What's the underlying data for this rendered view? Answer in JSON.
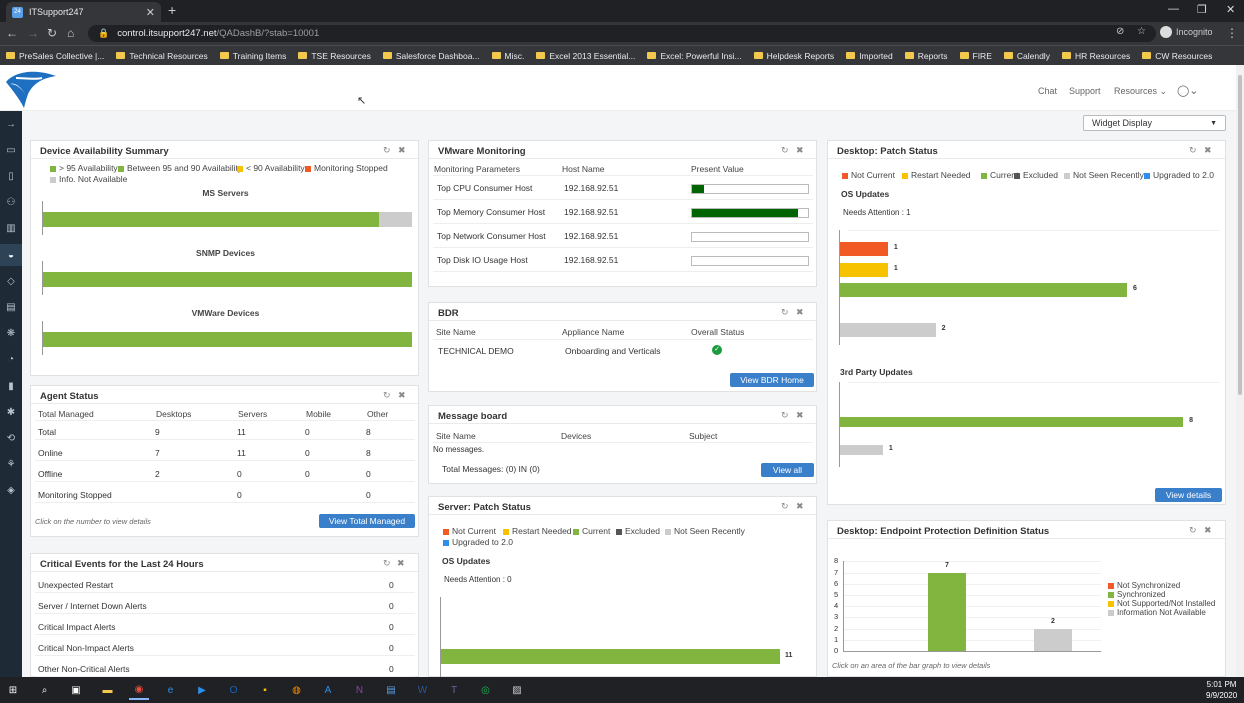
{
  "browser": {
    "tab_title": "ITSupport247",
    "url_host": "control.itsupport247.net",
    "url_path": "/QADashB/?stab=10001",
    "incognito": "Incognito",
    "bookmarks": [
      "PreSales Collective |...",
      "Technical Resources",
      "Training Items",
      "TSE Resources",
      "Salesforce Dashboa...",
      "Misc.",
      "Excel 2013 Essential...",
      "Excel: Powerful Insi...",
      "Helpdesk Reports",
      "Imported",
      "Reports",
      "FIRE",
      "Calendly",
      "HR Resources",
      "CW Resources"
    ]
  },
  "header": {
    "chat": "Chat",
    "support": "Support",
    "resources": "Resources",
    "widget_display": "Widget Display"
  },
  "colors": {
    "green": "#82b440",
    "red": "#f15a24",
    "yellow": "#f7c200",
    "gray": "#cccccc",
    "dark": "#555555",
    "blue": "#2d8fe8",
    "darkgreen": "#006400"
  },
  "device_availability": {
    "title": "Device Availability Summary",
    "legend": [
      "> 95 Availability",
      "Between 95 and 90 Availability",
      "< 90 Availability",
      "Monitoring Stopped",
      "Info. Not Available"
    ],
    "groups": [
      {
        "name": "MS Servers",
        "green_fraction": 0.91
      },
      {
        "name": "SNMP Devices",
        "green_fraction": 1.0
      },
      {
        "name": "VMWare Devices",
        "green_fraction": 1.0
      }
    ]
  },
  "agent_status": {
    "title": "Agent Status",
    "headers": [
      "Total Managed",
      "Desktops",
      "Servers",
      "Mobile",
      "Other"
    ],
    "rows": [
      [
        "Total",
        "9",
        "11",
        "0",
        "8"
      ],
      [
        "Online",
        "7",
        "11",
        "0",
        "8"
      ],
      [
        "Offline",
        "2",
        "0",
        "0",
        "0"
      ],
      [
        "Monitoring Stopped",
        "",
        "0",
        "",
        "0"
      ]
    ],
    "note": "Click on the number to view details",
    "button": "View Total Managed"
  },
  "critical_events": {
    "title": "Critical Events for the Last 24 Hours",
    "rows": [
      [
        "Unexpected Restart",
        "0"
      ],
      [
        "Server / Internet Down Alerts",
        "0"
      ],
      [
        "Critical Impact Alerts",
        "0"
      ],
      [
        "Critical Non-Impact Alerts",
        "0"
      ],
      [
        "Other Non-Critical Alerts",
        "0"
      ]
    ]
  },
  "vmware": {
    "title": "VMware Monitoring",
    "headers": [
      "Monitoring Parameters",
      "Host Name",
      "Present Value"
    ],
    "rows": [
      {
        "param": "Top CPU Consumer Host",
        "host": "192.168.92.51",
        "value": 0.1
      },
      {
        "param": "Top Memory Consumer Host",
        "host": "192.168.92.51",
        "value": 0.91
      },
      {
        "param": "Top Network Consumer Host",
        "host": "192.168.92.51",
        "value": 0.0
      },
      {
        "param": "Top Disk IO Usage Host",
        "host": "192.168.92.51",
        "value": 0.0
      }
    ]
  },
  "bdr": {
    "title": "BDR",
    "headers": [
      "Site Name",
      "Appliance Name",
      "Overall Status"
    ],
    "row": [
      "TECHNICAL DEMO",
      "Onboarding and Verticals"
    ],
    "button": "View BDR Home"
  },
  "message_board": {
    "title": "Message board",
    "headers": [
      "Site Name",
      "Devices",
      "Subject"
    ],
    "empty": "No messages.",
    "total": "Total Messages: (0) IN (0)",
    "button": "View all"
  },
  "server_patch": {
    "title": "Server: Patch Status",
    "legend": [
      "Not Current",
      "Restart Needed",
      "Current",
      "Excluded",
      "Not Seen Recently",
      "Upgraded to 2.0"
    ],
    "os_updates": "OS Updates",
    "needs_attention": "Needs Attention : 0",
    "current_value": "11"
  },
  "desktop_patch": {
    "title": "Desktop: Patch Status",
    "legend": [
      "Not Current",
      "Restart Needed",
      "Current",
      "Excluded",
      "Not Seen Recently",
      "Upgraded to 2.0"
    ],
    "os_updates": "OS Updates",
    "needs_attention": "Needs Attention : 1",
    "third_party": "3rd Party Updates",
    "button": "View details"
  },
  "chart_data": [
    {
      "type": "bar",
      "orientation": "horizontal",
      "title": "Desktop: Patch Status - OS Updates",
      "categories": [
        "Not Current",
        "Restart Needed",
        "Current",
        "Not Seen Recently"
      ],
      "values": [
        1,
        1,
        6,
        2
      ],
      "xlim": [
        0,
        7
      ]
    },
    {
      "type": "bar",
      "orientation": "horizontal",
      "title": "Desktop: Patch Status - 3rd Party Updates",
      "categories": [
        "Current",
        "Not Seen Recently"
      ],
      "values": [
        8,
        1
      ],
      "xlim": [
        0,
        8.5
      ]
    },
    {
      "type": "bar",
      "title": "Desktop: Endpoint Protection Definition Status",
      "categories": [
        "Synchronized",
        "Information Not Available"
      ],
      "values": [
        7,
        2
      ],
      "ylim": [
        0,
        8
      ],
      "yticks": [
        "0",
        "1",
        "2",
        "3",
        "4",
        "5",
        "6",
        "7",
        "8"
      ],
      "legend": [
        "Not Synchronized",
        "Synchronized",
        "Not Supported/Not Installed",
        "Information Not Available"
      ]
    }
  ],
  "endpoint": {
    "title": "Desktop: Endpoint Protection Definition Status",
    "note": "Click on an area of the bar graph to view details"
  },
  "taskbar": {
    "time": "5:01 PM",
    "date": "9/9/2020"
  }
}
